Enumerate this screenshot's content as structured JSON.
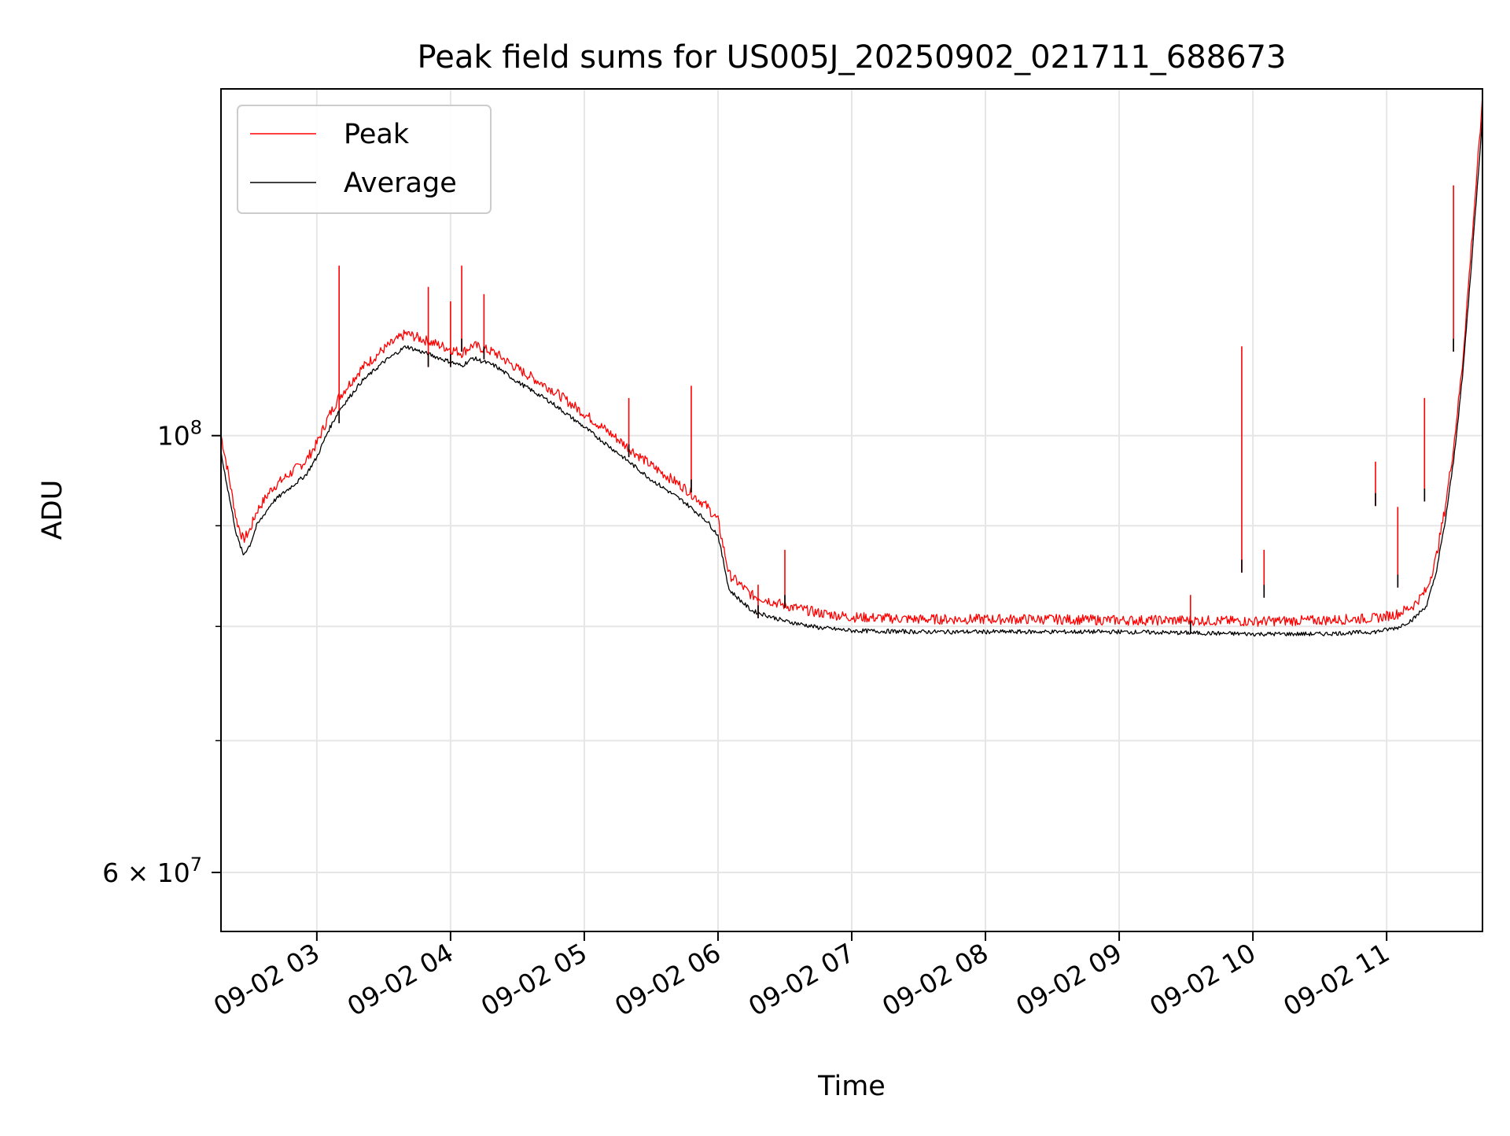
{
  "chart_data": {
    "type": "line",
    "title": "Peak field sums for US005J_20250902_021711_688673",
    "xlabel": "Time",
    "ylabel": "ADU",
    "x_axis": {
      "kind": "datetime",
      "range": [
        "2025-09-02 02:17",
        "2025-09-02 11:43"
      ],
      "ticks": [
        "09-02 03",
        "09-02 04",
        "09-02 05",
        "09-02 06",
        "09-02 07",
        "09-02 08",
        "09-02 09",
        "09-02 10",
        "09-02 11"
      ]
    },
    "y_axis": {
      "scale": "log",
      "ylim": [
        56000000,
        150000000
      ],
      "major_ticks": [
        {
          "value": 100000000,
          "label_base": "10",
          "label_exp": "8"
        },
        {
          "value": 60000000,
          "label_base": "6 × 10",
          "label_exp": "7"
        }
      ],
      "minor_gridlines": [
        70000000,
        80000000,
        90000000
      ]
    },
    "grid": true,
    "legend": {
      "position": "upper-left",
      "entries": [
        "Peak",
        "Average"
      ]
    },
    "series": [
      {
        "name": "Peak",
        "color": "#ff0000",
        "x": [
          "02:17",
          "02:20",
          "02:24",
          "02:27",
          "02:30",
          "02:33",
          "02:40",
          "02:50",
          "02:55",
          "03:00",
          "03:05",
          "03:10",
          "03:20",
          "03:30",
          "03:40",
          "03:50",
          "04:00",
          "04:05",
          "04:10",
          "04:20",
          "04:30",
          "04:45",
          "05:00",
          "05:15",
          "05:30",
          "05:45",
          "05:50",
          "05:55",
          "06:00",
          "06:05",
          "06:15",
          "06:30",
          "06:45",
          "07:00",
          "07:30",
          "08:00",
          "08:30",
          "09:00",
          "09:30",
          "10:00",
          "10:30",
          "10:55",
          "11:05",
          "11:12",
          "11:18",
          "11:22",
          "11:26",
          "11:30",
          "11:34",
          "11:38",
          "11:42",
          "11:43"
        ],
        "y": [
          99500000,
          95500000,
          90000000,
          88000000,
          89000000,
          91000000,
          93500000,
          95500000,
          96500000,
          98500000,
          101500000,
          104000000,
          107500000,
          110000000,
          112000000,
          111000000,
          110000000,
          109500000,
          110500000,
          109500000,
          107500000,
          105000000,
          102000000,
          99000000,
          96000000,
          93500000,
          92500000,
          91500000,
          90000000,
          84500000,
          82500000,
          81500000,
          80800000,
          80400000,
          80200000,
          80200000,
          80200000,
          80100000,
          80100000,
          80000000,
          80100000,
          80300000,
          80700000,
          81500000,
          83000000,
          86000000,
          91000000,
          98000000,
          108000000,
          124000000,
          142000000,
          149000000
        ]
      },
      {
        "name": "Average",
        "color": "#000000",
        "x": [
          "02:17",
          "02:20",
          "02:24",
          "02:27",
          "02:30",
          "02:33",
          "02:40",
          "02:50",
          "02:55",
          "03:00",
          "03:05",
          "03:10",
          "03:20",
          "03:30",
          "03:40",
          "03:50",
          "04:00",
          "04:05",
          "04:10",
          "04:20",
          "04:30",
          "04:45",
          "05:00",
          "05:15",
          "05:30",
          "05:45",
          "05:50",
          "05:55",
          "06:00",
          "06:05",
          "06:15",
          "06:30",
          "06:45",
          "07:00",
          "07:30",
          "08:00",
          "08:30",
          "09:00",
          "09:30",
          "10:00",
          "10:30",
          "10:55",
          "11:05",
          "11:12",
          "11:18",
          "11:22",
          "11:26",
          "11:30",
          "11:34",
          "11:38",
          "11:42",
          "11:43"
        ],
        "y": [
          98000000,
          94000000,
          89000000,
          87000000,
          88000000,
          90000000,
          92500000,
          94500000,
          95500000,
          97500000,
          100500000,
          103000000,
          106500000,
          109000000,
          111000000,
          110000000,
          109000000,
          108500000,
          109500000,
          108500000,
          106500000,
          104000000,
          101000000,
          98000000,
          95000000,
          92500000,
          91500000,
          90500000,
          89000000,
          83500000,
          81500000,
          80500000,
          79900000,
          79600000,
          79500000,
          79500000,
          79500000,
          79500000,
          79400000,
          79300000,
          79300000,
          79500000,
          79900000,
          80700000,
          82000000,
          85000000,
          90000000,
          97000000,
          107000000,
          122000000,
          140000000,
          146000000
        ]
      }
    ],
    "spikes": [
      {
        "x": "03:10",
        "peak": 122000000,
        "average": 103000000
      },
      {
        "x": "03:50",
        "peak": 119000000,
        "average": 110000000
      },
      {
        "x": "04:00",
        "peak": 117000000,
        "average": 110000000
      },
      {
        "x": "04:05",
        "peak": 122000000,
        "average": 112000000
      },
      {
        "x": "04:15",
        "peak": 118000000,
        "average": 111000000
      },
      {
        "x": "05:20",
        "peak": 104500000,
        "average": 99000000
      },
      {
        "x": "05:48",
        "peak": 106000000,
        "average": 95000000
      },
      {
        "x": "06:18",
        "peak": 84000000,
        "average": 82000000
      },
      {
        "x": "06:30",
        "peak": 87500000,
        "average": 83000000
      },
      {
        "x": "09:32",
        "peak": 83000000,
        "average": 80500000
      },
      {
        "x": "09:55",
        "peak": 111000000,
        "average": 86500000
      },
      {
        "x": "10:05",
        "peak": 87500000,
        "average": 84000000
      },
      {
        "x": "10:55",
        "peak": 97000000,
        "average": 93500000
      },
      {
        "x": "11:05",
        "peak": 92000000,
        "average": 85000000
      },
      {
        "x": "11:17",
        "peak": 104500000,
        "average": 94000000
      },
      {
        "x": "11:30",
        "peak": 134000000,
        "average": 112000000
      }
    ]
  }
}
